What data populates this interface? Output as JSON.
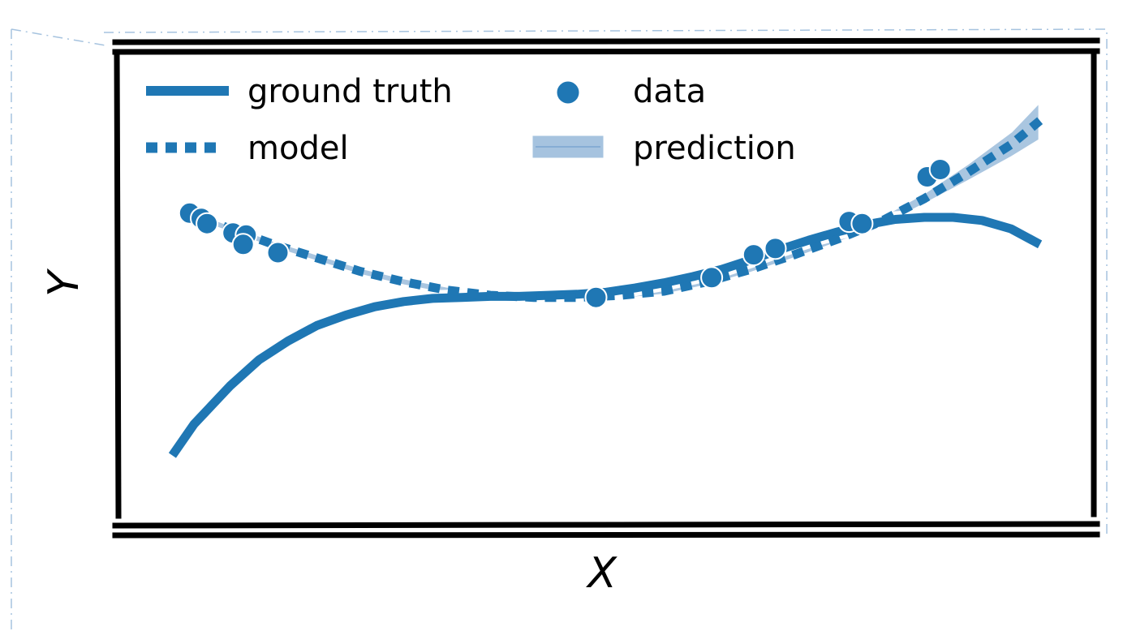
{
  "chart_data": {
    "type": "line",
    "title": "",
    "xlabel": "X",
    "ylabel": "Y",
    "xlim": [
      -3.35,
      3.35
    ],
    "ylim": [
      -2.2,
      2.2
    ],
    "grid": false,
    "ticks": "none",
    "legend_position": "top",
    "colors": {
      "line": "#1f77b4",
      "band": "#a6c3df",
      "frame": "#000000",
      "halo": "#ffffff"
    },
    "legend": {
      "ground_truth": "ground truth",
      "data": "data",
      "model": "model",
      "prediction": "prediction"
    },
    "series": [
      {
        "name": "ground truth",
        "style": "solid",
        "x": [
          -3.0,
          -2.85,
          -2.6,
          -2.4,
          -2.2,
          -2.0,
          -1.8,
          -1.6,
          -1.4,
          -1.2,
          -1.0,
          -0.8,
          -0.6,
          -0.4,
          -0.2,
          0.0,
          0.2,
          0.4,
          0.6,
          0.8,
          1.0,
          1.2,
          1.4,
          1.6,
          1.8,
          2.0,
          2.2,
          2.4,
          2.6,
          2.8,
          3.0
        ],
        "y": [
          -1.65,
          -1.35,
          -0.98,
          -0.73,
          -0.55,
          -0.4,
          -0.3,
          -0.22,
          -0.17,
          -0.14,
          -0.13,
          -0.12,
          -0.12,
          -0.11,
          -0.1,
          -0.08,
          -0.04,
          0.01,
          0.07,
          0.14,
          0.23,
          0.33,
          0.42,
          0.5,
          0.57,
          0.62,
          0.64,
          0.64,
          0.61,
          0.53,
          0.38
        ]
      },
      {
        "name": "model",
        "style": "dotted",
        "x": [
          -2.9,
          -2.6,
          -2.3,
          -2.0,
          -1.7,
          -1.4,
          -1.1,
          -0.8,
          -0.5,
          -0.2,
          0.1,
          0.4,
          0.7,
          1.0,
          1.3,
          1.6,
          1.9,
          2.2,
          2.5,
          2.8,
          3.0
        ],
        "y": [
          0.68,
          0.53,
          0.38,
          0.25,
          0.12,
          0.02,
          -0.06,
          -0.11,
          -0.13,
          -0.13,
          -0.11,
          -0.07,
          0.02,
          0.14,
          0.28,
          0.43,
          0.6,
          0.82,
          1.07,
          1.34,
          1.57
        ]
      }
    ],
    "prediction_band": {
      "name": "prediction",
      "x": [
        -2.9,
        -2.6,
        -2.3,
        -2.0,
        -1.7,
        -1.4,
        -1.1,
        -0.8,
        -0.5,
        -0.2,
        0.1,
        0.4,
        0.7,
        1.0,
        1.3,
        1.6,
        1.9,
        2.2,
        2.5,
        2.8,
        3.0
      ],
      "lower": [
        0.64,
        0.49,
        0.34,
        0.21,
        0.08,
        -0.02,
        -0.1,
        -0.15,
        -0.17,
        -0.17,
        -0.15,
        -0.11,
        -0.02,
        0.1,
        0.24,
        0.39,
        0.55,
        0.76,
        0.98,
        1.21,
        1.38
      ],
      "upper": [
        0.72,
        0.57,
        0.42,
        0.29,
        0.16,
        0.06,
        -0.02,
        -0.07,
        -0.09,
        -0.09,
        -0.07,
        -0.03,
        0.06,
        0.18,
        0.32,
        0.47,
        0.65,
        0.88,
        1.16,
        1.47,
        1.76
      ]
    },
    "scatter": {
      "name": "data",
      "points": [
        {
          "x": -2.88,
          "y": 0.68
        },
        {
          "x": -2.8,
          "y": 0.63
        },
        {
          "x": -2.76,
          "y": 0.58
        },
        {
          "x": -2.58,
          "y": 0.49
        },
        {
          "x": -2.49,
          "y": 0.47
        },
        {
          "x": -2.51,
          "y": 0.38
        },
        {
          "x": -2.27,
          "y": 0.3
        },
        {
          "x": -0.07,
          "y": -0.13
        },
        {
          "x": 0.73,
          "y": 0.06
        },
        {
          "x": 1.02,
          "y": 0.28
        },
        {
          "x": 1.17,
          "y": 0.34
        },
        {
          "x": 1.68,
          "y": 0.6
        },
        {
          "x": 1.77,
          "y": 0.58
        },
        {
          "x": 2.22,
          "y": 1.03
        },
        {
          "x": 2.31,
          "y": 1.1
        }
      ]
    }
  }
}
